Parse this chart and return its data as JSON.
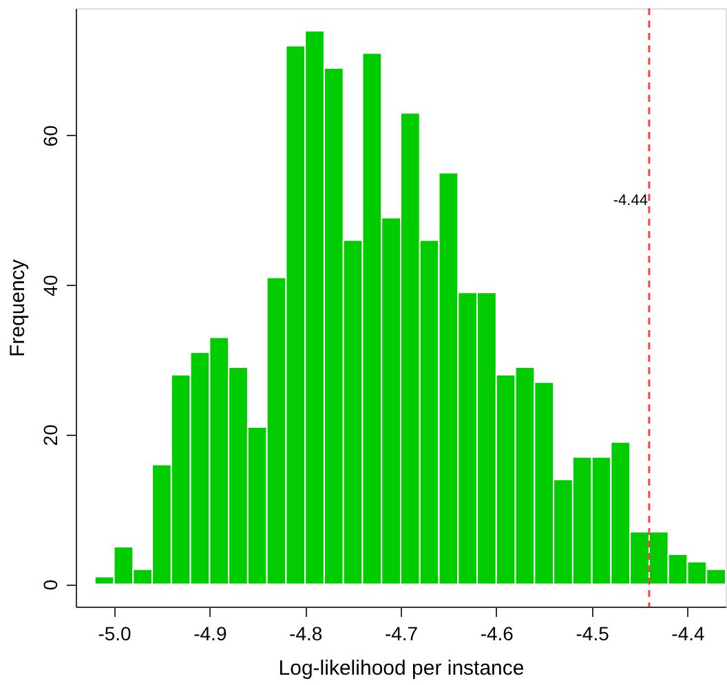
{
  "chart_data": {
    "type": "histogram",
    "xlabel": "Log-likelihood per instance",
    "ylabel": "Frequency",
    "bins": [
      -5.02,
      -5.0,
      -4.98,
      -4.96,
      -4.94,
      -4.92,
      -4.9,
      -4.88,
      -4.86,
      -4.84,
      -4.82,
      -4.8,
      -4.78,
      -4.76,
      -4.74,
      -4.72,
      -4.7,
      -4.68,
      -4.66,
      -4.64,
      -4.62,
      -4.6,
      -4.58,
      -4.56,
      -4.54,
      -4.52,
      -4.5,
      -4.48,
      -4.46,
      -4.44,
      -4.42,
      -4.4,
      -4.38,
      -4.36
    ],
    "values": [
      1,
      5,
      2,
      16,
      28,
      31,
      33,
      29,
      21,
      41,
      72,
      74,
      69,
      46,
      71,
      49,
      63,
      46,
      55,
      39,
      39,
      28,
      29,
      27,
      14,
      17,
      17,
      19,
      7,
      7,
      4,
      3,
      2
    ],
    "color": "#00cc00",
    "xlim": [
      -5.04,
      -4.36
    ],
    "xticks": [
      {
        "value": -5.0,
        "label": "-5.0"
      },
      {
        "value": -4.9,
        "label": "-4.9"
      },
      {
        "value": -4.8,
        "label": "-4.8"
      },
      {
        "value": -4.7,
        "label": "-4.7"
      },
      {
        "value": -4.6,
        "label": "-4.6"
      },
      {
        "value": -4.5,
        "label": "-4.5"
      },
      {
        "value": -4.4,
        "label": "-4.4"
      }
    ],
    "ylim": [
      -3,
      77
    ],
    "yticks": [
      0,
      20,
      40,
      60
    ],
    "ref_lines": [
      {
        "axis": "x",
        "value": -4.44,
        "label": "-4.44",
        "color": "#ff4040",
        "line_style": "dashed"
      }
    ],
    "grid": false
  }
}
